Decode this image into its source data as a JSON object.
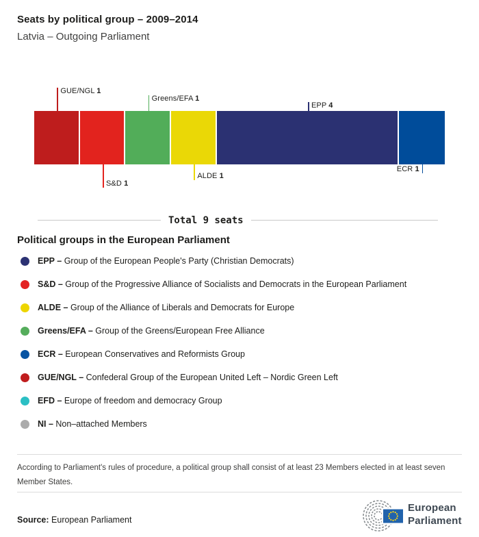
{
  "header": {
    "title": "Seats by political group – 2009–2014",
    "subtitle": "Latvia – Outgoing Parliament"
  },
  "chart_data": {
    "type": "bar",
    "subtype": "horizontal-stacked-seats",
    "title": "Seats by political group – 2009–2014",
    "region": "Latvia – Outgoing Parliament",
    "total_seats": 9,
    "total_label": "Total 9 seats",
    "categories": [
      "GUE/NGL",
      "S&D",
      "Greens/EFA",
      "ALDE",
      "EPP",
      "ECR"
    ],
    "values": [
      1,
      1,
      1,
      1,
      4,
      1
    ],
    "segments": [
      {
        "name": "GUE/NGL",
        "seats": 1,
        "color": "#be1d1d",
        "callout_side": "above",
        "callout_tier": 3,
        "label_align": "right"
      },
      {
        "name": "S&D",
        "seats": 1,
        "color": "#e2231e",
        "callout_side": "below",
        "callout_tier": 3,
        "label_align": "right"
      },
      {
        "name": "Greens/EFA",
        "seats": 1,
        "color": "#52ad59",
        "callout_side": "above",
        "callout_tier": 2,
        "label_align": "right"
      },
      {
        "name": "ALDE",
        "seats": 1,
        "color": "#ead806",
        "callout_side": "below",
        "callout_tier": 2,
        "label_align": "right"
      },
      {
        "name": "EPP",
        "seats": 4,
        "color": "#2b3172",
        "callout_side": "above",
        "callout_tier": 1,
        "label_align": "right"
      },
      {
        "name": "ECR",
        "seats": 1,
        "color": "#004c9a",
        "callout_side": "below",
        "callout_tier": 1,
        "label_align": "left"
      }
    ],
    "legend_position": "below",
    "grid": false
  },
  "legend": {
    "heading": "Political groups in the European Parliament",
    "items": [
      {
        "abbr": "EPP –",
        "description": "Group of the European People's Party (Christian Democrats)",
        "color": "#2c3273"
      },
      {
        "abbr": "S&D –",
        "description": "Group of the Progressive Alliance of Socialists and Democrats in the European Parliament",
        "color": "#e32222"
      },
      {
        "abbr": "ALDE –",
        "description": "Group of the Alliance of Liberals and Democrats for Europe",
        "color": "#edd500"
      },
      {
        "abbr": "Greens/EFA –",
        "description": "Group of the Greens/European Free Alliance",
        "color": "#55ad5c"
      },
      {
        "abbr": "ECR –",
        "description": "European Conservatives and Reformists Group",
        "color": "#0854a3"
      },
      {
        "abbr": "GUE/NGL –",
        "description": "Confederal Group of the European United Left – Nordic Green Left",
        "color": "#c01d1e"
      },
      {
        "abbr": "EFD –",
        "description": "Europe of freedom and democracy Group",
        "color": "#2bbfc4"
      },
      {
        "abbr": "NI –",
        "description": "Non–attached Members",
        "color": "#ababab"
      }
    ]
  },
  "footnote": "According to Parliament's rules of procedure, a political group shall consist of at least 23 Members elected in at least seven Member States.",
  "source": {
    "label": "Source:",
    "value": "European Parliament"
  },
  "logo": {
    "line1": "European",
    "line2": "Parliament"
  }
}
